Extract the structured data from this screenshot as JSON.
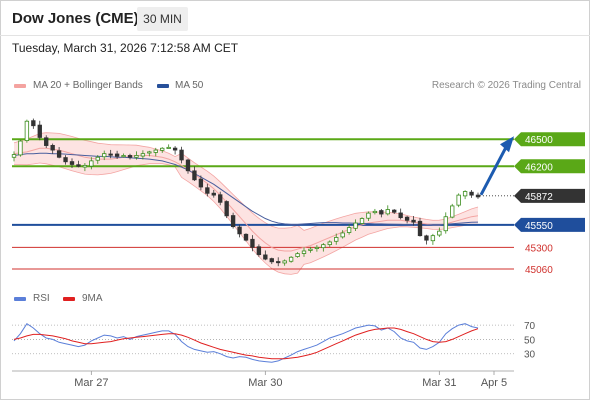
{
  "header": {
    "title": "Dow Jones (CME)",
    "timeframe": "30 MIN",
    "timestamp": "Tuesday, March 31, 2026 7:12:58 AM CET"
  },
  "legend": {
    "ma20_bb": "MA 20 + Bollinger Bands",
    "ma50": "MA 50",
    "rsi": "RSI",
    "rsi_ma": "9MA"
  },
  "copyright": "Research © 2026 Trading Central",
  "colors": {
    "resistance": "#5aa817",
    "pivot": "#1f4e9c",
    "support": "#d0312d",
    "candle_up": "#3a8c1c",
    "candle_down": "#333333",
    "bb_fill": "#fde0df",
    "bb_line": "#f3a5a3",
    "ma50": "#4a5f9e",
    "rsi": "#5b7fd9",
    "rsi_ma": "#e02020",
    "arrow": "#1c5bb0"
  },
  "chart_data": [
    {
      "type": "candlestick",
      "ylim": [
        44960,
        46980
      ],
      "x_ticks": [
        "Mar 27",
        "Mar 30",
        "Mar 31",
        "Apr 5"
      ],
      "levels": [
        {
          "value": 46500,
          "label": "46500",
          "kind": "resistance"
        },
        {
          "value": 46200,
          "label": "46200",
          "kind": "resistance"
        },
        {
          "value": 45872,
          "label": "45872",
          "kind": "last"
        },
        {
          "value": 45550,
          "label": "45550",
          "kind": "pivot"
        },
        {
          "value": 45300,
          "label": "45300",
          "kind": "support"
        },
        {
          "value": 45060,
          "label": "45060",
          "kind": "support"
        }
      ],
      "last_price": 45872,
      "forecast_target": 46500,
      "close": [
        46330,
        46480,
        46700,
        46650,
        46520,
        46430,
        46380,
        46300,
        46250,
        46220,
        46200,
        46210,
        46260,
        46300,
        46340,
        46330,
        46310,
        46320,
        46300,
        46320,
        46340,
        46360,
        46380,
        46400,
        46410,
        46380,
        46270,
        46150,
        46050,
        45970,
        45900,
        45880,
        45800,
        45650,
        45530,
        45450,
        45380,
        45300,
        45220,
        45170,
        45140,
        45130,
        45150,
        45190,
        45230,
        45260,
        45280,
        45300,
        45330,
        45360,
        45410,
        45460,
        45520,
        45570,
        45620,
        45680,
        45700,
        45670,
        45720,
        45690,
        45630,
        45600,
        45580,
        45430,
        45380,
        45430,
        45480,
        45640,
        45760,
        45880,
        45920,
        45880,
        45860
      ],
      "ma20": [
        46340,
        46350,
        46360,
        46380,
        46400,
        46400,
        46390,
        46380,
        46360,
        46340,
        46320,
        46300,
        46290,
        46280,
        46280,
        46280,
        46290,
        46300,
        46310,
        46320,
        46320,
        46320,
        46310,
        46300,
        46280,
        46250,
        46210,
        46160,
        46110,
        46060,
        46010,
        45950,
        45880,
        45800,
        45720,
        45640,
        45560,
        45480,
        45410,
        45350,
        45300,
        45270,
        45260,
        45260,
        45280,
        45300,
        45320,
        45350,
        45380,
        45410,
        45440,
        45470,
        45500,
        45530,
        45550,
        45570,
        45580,
        45590,
        45600,
        45600,
        45600,
        45590,
        45580,
        45570,
        45560,
        45550,
        45550,
        45560,
        45580,
        45600,
        45620,
        45640,
        45650
      ],
      "ma50": [
        46320,
        46330,
        46340,
        46340,
        46345,
        46345,
        46340,
        46340,
        46335,
        46330,
        46325,
        46320,
        46315,
        46310,
        46310,
        46305,
        46300,
        46300,
        46295,
        46290,
        46285,
        46280,
        46270,
        46260,
        46240,
        46220,
        46190,
        46160,
        46120,
        46080,
        46040,
        46000,
        45950,
        45900,
        45850,
        45800,
        45750,
        45700,
        45660,
        45620,
        45590,
        45570,
        45560,
        45555,
        45555,
        45560,
        45565,
        45570,
        45575,
        45575,
        45575,
        45570,
        45570,
        45568,
        45566,
        45565,
        45560,
        45560,
        45558,
        45556,
        45555,
        45553,
        45552,
        45550,
        45549,
        45550,
        45552,
        45556,
        45562,
        45568,
        45574,
        45578,
        45580
      ]
    },
    {
      "type": "line",
      "title": "RSI",
      "ylim": [
        10,
        80
      ],
      "y_ticks": [
        70,
        50,
        30
      ],
      "series": [
        {
          "name": "RSI",
          "values": [
            48,
            58,
            72,
            66,
            58,
            52,
            50,
            46,
            44,
            42,
            40,
            42,
            48,
            52,
            56,
            55,
            52,
            54,
            50,
            54,
            56,
            58,
            60,
            62,
            62,
            57,
            47,
            40,
            36,
            34,
            32,
            33,
            30,
            26,
            24,
            26,
            25,
            22,
            20,
            19,
            18,
            20,
            24,
            28,
            33,
            36,
            39,
            42,
            47,
            52,
            55,
            58,
            62,
            66,
            68,
            70,
            69,
            63,
            66,
            61,
            52,
            48,
            46,
            38,
            36,
            40,
            46,
            58,
            65,
            70,
            72,
            68,
            66
          ]
        },
        {
          "name": "9MA",
          "values": [
            50,
            52,
            55,
            57,
            57,
            56,
            55,
            53,
            51,
            48,
            46,
            44,
            44,
            45,
            46,
            47,
            49,
            51,
            52,
            53,
            54,
            55,
            56,
            57,
            58,
            58,
            56,
            53,
            49,
            45,
            42,
            39,
            36,
            34,
            32,
            30,
            28,
            27,
            25,
            24,
            23,
            23,
            23,
            24,
            25,
            27,
            29,
            32,
            36,
            40,
            44,
            48,
            52,
            56,
            59,
            62,
            64,
            65,
            66,
            66,
            64,
            61,
            58,
            54,
            50,
            47,
            46,
            47,
            50,
            54,
            58,
            62,
            65
          ]
        }
      ]
    }
  ]
}
